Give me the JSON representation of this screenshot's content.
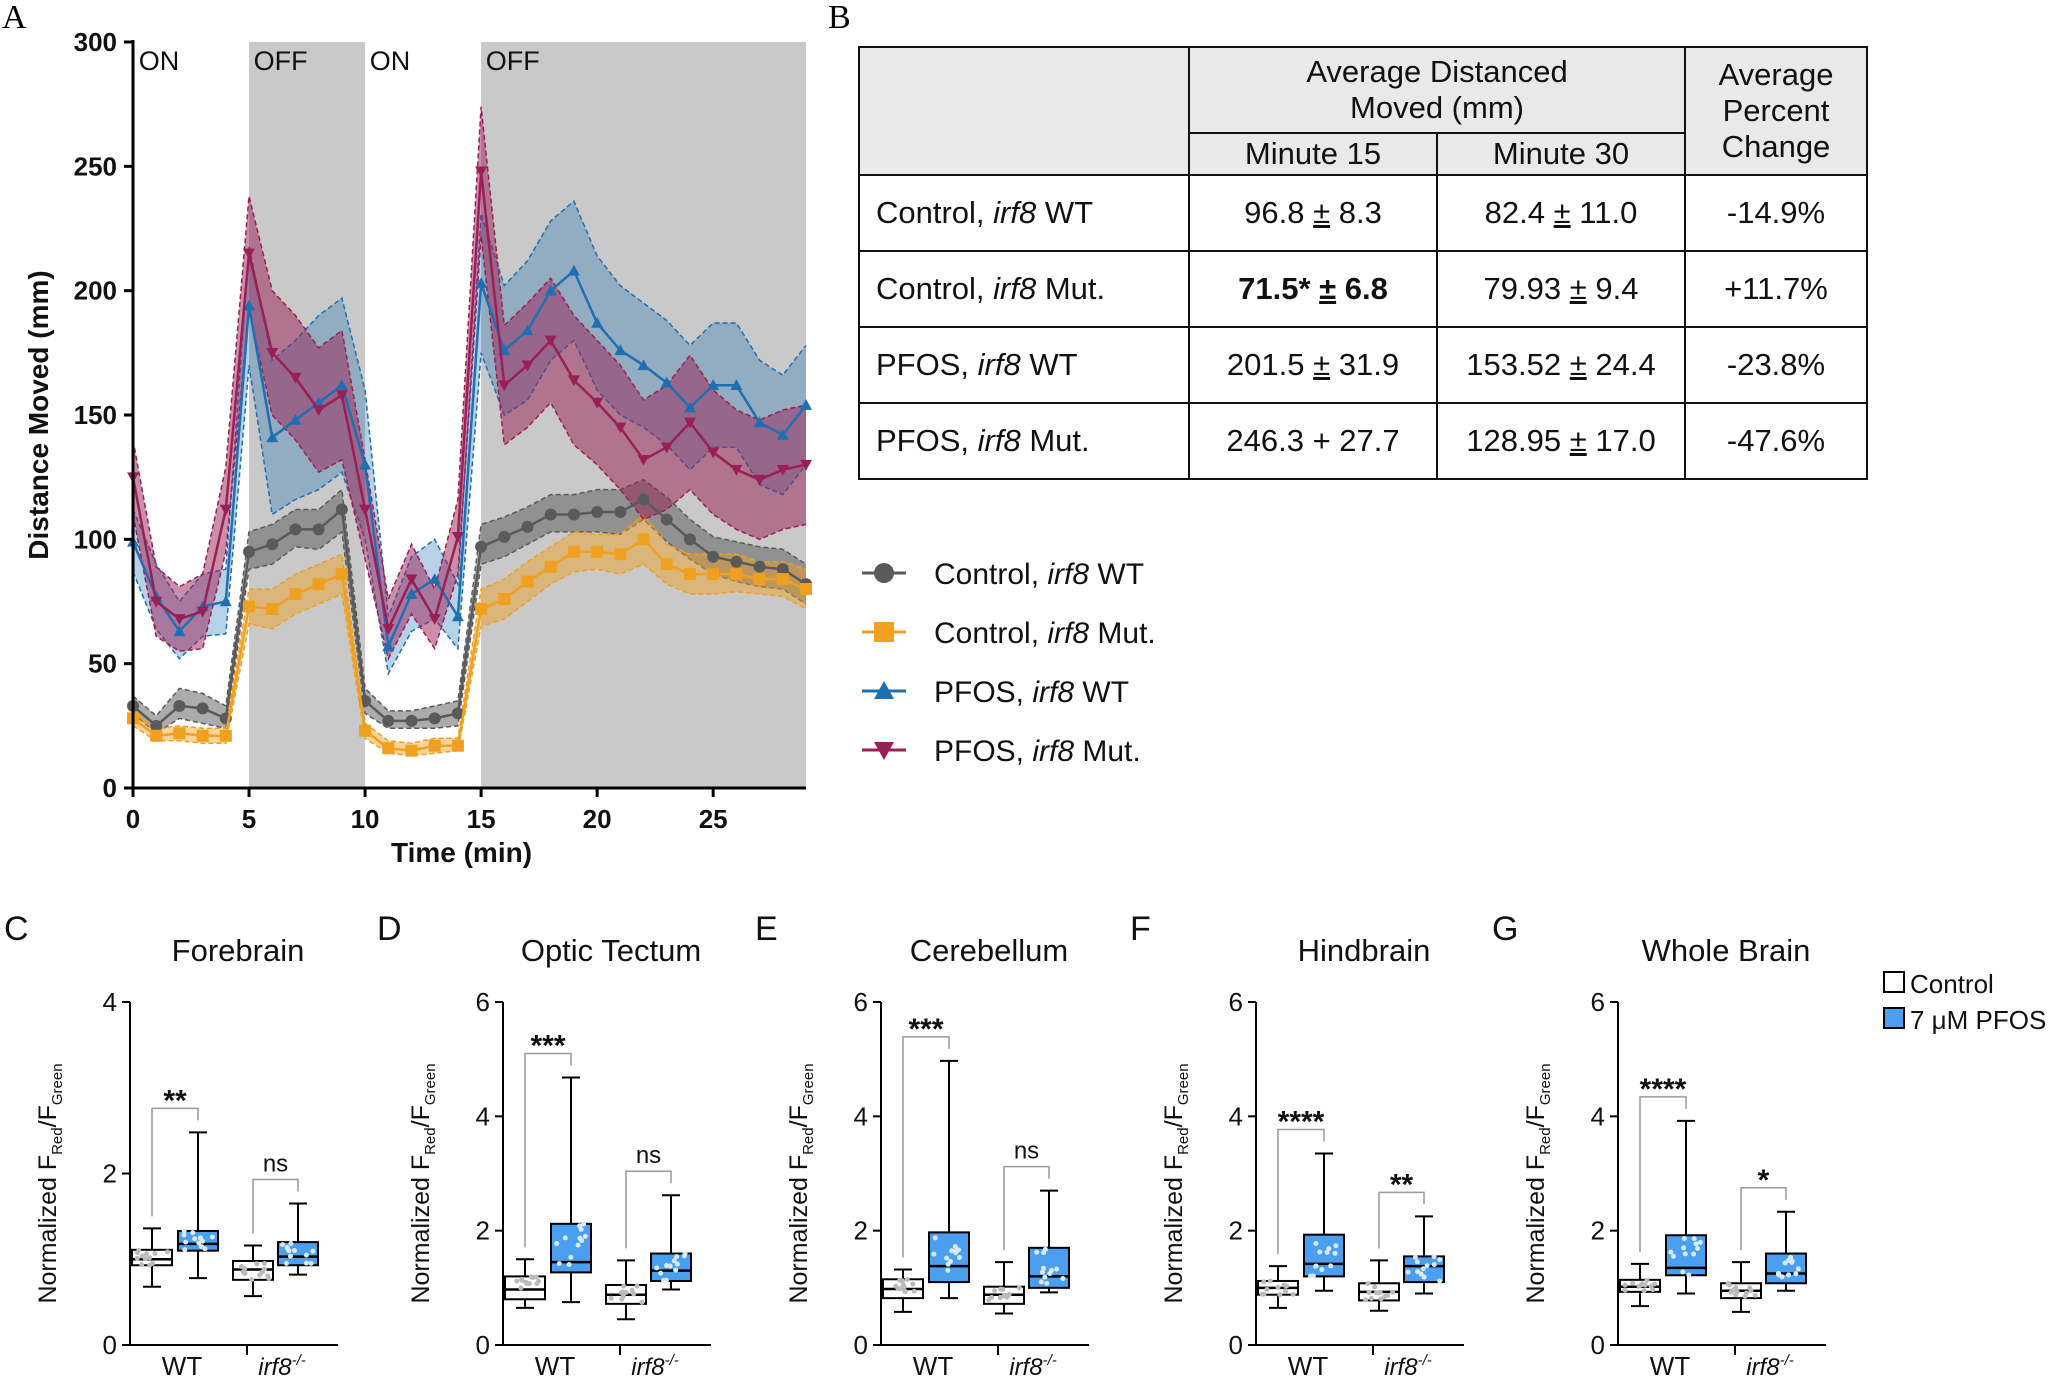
{
  "panel_a": {
    "label": "A",
    "light_labels": [
      "ON",
      "OFF",
      "ON",
      "OFF"
    ],
    "legend": [
      {
        "series": 0,
        "prefix": "Control, ",
        "gene": "irf8",
        "suffix": " WT"
      },
      {
        "series": 1,
        "prefix": "Control, ",
        "gene": "irf8",
        "suffix": " Mut."
      },
      {
        "series": 2,
        "prefix": "PFOS, ",
        "gene": "irf8",
        "suffix": " WT"
      },
      {
        "series": 3,
        "prefix": "PFOS, ",
        "gene": "irf8",
        "suffix": " Mut."
      }
    ]
  },
  "panel_b": {
    "label": "B",
    "header": {
      "avg_dist": "Average Distanced Moved (mm)",
      "avg_dist_line1": "Average Distanced",
      "avg_dist_line2": "Moved (mm)",
      "pct_line1": "Average",
      "pct_line2": "Percent",
      "pct_line3": "Change",
      "minute15": "Minute 15",
      "minute30": "Minute 30"
    },
    "rows": [
      {
        "prefix": "Control, ",
        "gene": "irf8",
        "suffix": " WT",
        "m15": "96.8 ± 8.3",
        "m15_mean": "96.8",
        "m15_pm": "±",
        "m15_err": "8.3",
        "m30": "82.4 ± 11.0",
        "m30_mean": "82.4",
        "m30_pm": "±",
        "m30_err": "11.0",
        "pct": "-14.9%"
      },
      {
        "prefix": "Control, ",
        "gene": "irf8",
        "suffix": " Mut.",
        "m15": "71.5* ± 6.8",
        "m15_mean": "71.5*",
        "m15_pm": "±",
        "m15_err": "6.8",
        "m30": "79.93 ± 9.4",
        "m30_mean": "79.93",
        "m30_pm": "±",
        "m30_err": "9.4",
        "pct": "+11.7%"
      },
      {
        "prefix": "PFOS, ",
        "gene": "irf8",
        "suffix": " WT",
        "m15": "201.5 ± 31.9",
        "m15_mean": "201.5",
        "m15_pm": "±",
        "m15_err": "31.9",
        "m30": "153.52 ± 24.4",
        "m30_mean": "153.52",
        "m30_pm": "±",
        "m30_err": "24.4",
        "pct": "-23.8%"
      },
      {
        "prefix": "PFOS, ",
        "gene": "irf8",
        "suffix": " Mut.",
        "m15": "246.3 + 27.7",
        "m15_mean": "246.3",
        "m15_pm": "+",
        "m15_err": "27.7",
        "m30": "128.95 ± 17.0",
        "m30_mean": "128.95",
        "m30_pm": "±",
        "m30_err": "17.0",
        "pct": "-47.6%"
      }
    ]
  },
  "box_legend": {
    "control": "Control",
    "pfos": "7 μM PFOS"
  },
  "colors": {
    "control_wt": "#5a5a5a",
    "control_mut": "#f0a020",
    "pfos_wt": "#1f6fb2",
    "pfos_mut": "#9a1f55",
    "off_shade": "#c9c9c9",
    "box_control": "#ffffff",
    "box_pfos": "#4a9ff0"
  },
  "chart_data": [
    {
      "type": "line",
      "panel": "A",
      "title": "",
      "xlabel": "Time (min)",
      "ylabel": "Distance Moved (mm)",
      "xlim": [
        0,
        29
      ],
      "ylim": [
        0,
        300
      ],
      "x_ticks": [
        0,
        5,
        10,
        15,
        20,
        25
      ],
      "y_ticks": [
        0,
        50,
        100,
        150,
        200,
        250,
        300
      ],
      "off_periods": [
        [
          5,
          10
        ],
        [
          15,
          29
        ]
      ],
      "x": [
        0,
        1,
        2,
        3,
        4,
        5,
        6,
        7,
        8,
        9,
        10,
        11,
        12,
        13,
        14,
        15,
        16,
        17,
        18,
        19,
        20,
        21,
        22,
        23,
        24,
        25,
        26,
        27,
        28,
        29
      ],
      "series": [
        {
          "name": "Control, irf8 WT",
          "marker": "circle",
          "values": [
            33,
            25,
            33,
            32,
            28,
            95,
            98,
            104,
            104,
            112,
            35,
            27,
            27,
            28,
            30,
            97,
            101,
            105,
            110,
            110,
            111,
            111,
            116,
            108,
            100,
            93,
            91,
            89,
            88,
            82
          ],
          "lower": [
            30,
            22,
            28,
            26,
            24,
            88,
            90,
            97,
            96,
            103,
            30,
            24,
            24,
            24,
            25,
            90,
            93,
            98,
            103,
            103,
            103,
            102,
            108,
            99,
            92,
            86,
            83,
            81,
            80,
            74
          ],
          "upper": [
            37,
            29,
            40,
            38,
            33,
            103,
            106,
            112,
            112,
            120,
            40,
            31,
            31,
            33,
            35,
            106,
            109,
            113,
            118,
            118,
            120,
            120,
            124,
            117,
            108,
            101,
            99,
            97,
            96,
            90
          ]
        },
        {
          "name": "Control, irf8 Mut.",
          "marker": "square",
          "values": [
            28,
            21,
            22,
            21,
            21,
            73,
            72,
            78,
            82,
            86,
            23,
            16,
            15,
            17,
            17,
            72,
            76,
            83,
            89,
            95,
            95,
            94,
            100,
            90,
            86,
            86,
            86,
            84,
            84,
            80
          ],
          "lower": [
            25,
            19,
            19,
            18,
            18,
            66,
            64,
            70,
            74,
            78,
            20,
            14,
            13,
            14,
            15,
            65,
            68,
            75,
            82,
            87,
            88,
            86,
            90,
            82,
            78,
            78,
            79,
            78,
            77,
            72
          ],
          "upper": [
            31,
            24,
            25,
            24,
            24,
            80,
            80,
            86,
            90,
            94,
            26,
            19,
            18,
            20,
            20,
            80,
            84,
            91,
            97,
            103,
            102,
            102,
            110,
            98,
            94,
            94,
            94,
            91,
            91,
            88
          ]
        },
        {
          "name": "PFOS, irf8 WT",
          "marker": "triangle",
          "values": [
            99,
            77,
            63,
            73,
            75,
            194,
            141,
            148,
            155,
            162,
            130,
            57,
            78,
            84,
            69,
            203,
            176,
            184,
            200,
            208,
            187,
            176,
            170,
            163,
            153,
            162,
            162,
            147,
            142,
            154
          ],
          "lower": [
            87,
            64,
            52,
            61,
            62,
            170,
            110,
            116,
            120,
            127,
            100,
            46,
            63,
            68,
            56,
            175,
            150,
            156,
            172,
            180,
            160,
            150,
            145,
            138,
            128,
            137,
            137,
            122,
            118,
            130
          ],
          "upper": [
            112,
            90,
            75,
            86,
            88,
            218,
            172,
            180,
            190,
            197,
            160,
            69,
            93,
            100,
            82,
            231,
            202,
            212,
            228,
            236,
            214,
            202,
            195,
            188,
            178,
            187,
            187,
            172,
            166,
            178
          ]
        },
        {
          "name": "PFOS, irf8 Mut.",
          "marker": "triangle-down",
          "values": [
            125,
            75,
            68,
            71,
            112,
            215,
            175,
            165,
            152,
            158,
            112,
            64,
            84,
            68,
            101,
            248,
            162,
            170,
            180,
            164,
            155,
            145,
            132,
            137,
            147,
            135,
            128,
            124,
            128,
            130
          ],
          "lower": [
            110,
            61,
            55,
            56,
            95,
            192,
            150,
            140,
            127,
            132,
            92,
            52,
            70,
            56,
            86,
            222,
            138,
            145,
            155,
            138,
            130,
            120,
            108,
            112,
            120,
            110,
            104,
            100,
            104,
            106
          ],
          "upper": [
            140,
            89,
            81,
            86,
            129,
            238,
            200,
            190,
            177,
            184,
            132,
            76,
            98,
            80,
            116,
            274,
            186,
            195,
            205,
            190,
            180,
            170,
            156,
            162,
            174,
            160,
            152,
            148,
            152,
            154
          ]
        }
      ]
    },
    {
      "type": "box",
      "panel": "C",
      "panel_label": "C",
      "title": "Forebrain",
      "ylabel": "Normalized F",
      "ylabel_sub1": "Red",
      "ylabel_mid": "/F",
      "ylabel_sub2": "Green",
      "ylim": [
        0,
        4
      ],
      "y_ticks": [
        0,
        2,
        4
      ],
      "categories": [
        "WT",
        "irf8",
        "-/-"
      ],
      "boxes": [
        {
          "group": "Control",
          "min": 0.68,
          "q1": 0.93,
          "median": 1.0,
          "q3": 1.11,
          "max": 1.36
        },
        {
          "group": "7 μM PFOS",
          "min": 0.78,
          "q1": 1.1,
          "median": 1.18,
          "q3": 1.33,
          "max": 2.48
        },
        {
          "group": "Control",
          "min": 0.57,
          "q1": 0.76,
          "median": 0.88,
          "q3": 0.98,
          "max": 1.16
        },
        {
          "group": "7 μM PFOS",
          "min": 0.82,
          "q1": 0.93,
          "median": 1.03,
          "q3": 1.2,
          "max": 1.65
        }
      ],
      "significance": [
        "**",
        "ns"
      ]
    },
    {
      "type": "box",
      "panel": "D",
      "panel_label": "D",
      "title": "Optic Tectum",
      "ylabel": "Normalized F",
      "ylabel_sub1": "Red",
      "ylabel_mid": "/F",
      "ylabel_sub2": "Green",
      "ylim": [
        0,
        6
      ],
      "y_ticks": [
        0,
        2,
        4,
        6
      ],
      "categories": [
        "WT",
        "irf8",
        "-/-"
      ],
      "boxes": [
        {
          "group": "Control",
          "min": 0.65,
          "q1": 0.8,
          "median": 0.97,
          "q3": 1.2,
          "max": 1.5
        },
        {
          "group": "7 μM PFOS",
          "min": 0.75,
          "q1": 1.27,
          "median": 1.45,
          "q3": 2.12,
          "max": 4.68
        },
        {
          "group": "Control",
          "min": 0.45,
          "q1": 0.72,
          "median": 0.88,
          "q3": 1.05,
          "max": 1.48
        },
        {
          "group": "7 μM PFOS",
          "min": 0.97,
          "q1": 1.12,
          "median": 1.3,
          "q3": 1.6,
          "max": 2.62
        }
      ],
      "significance": [
        "***",
        "ns"
      ]
    },
    {
      "type": "box",
      "panel": "E",
      "panel_label": "E",
      "title": "Cerebellum",
      "ylabel": "Normalized F",
      "ylabel_sub1": "Red",
      "ylabel_mid": "/F",
      "ylabel_sub2": "Green",
      "ylim": [
        0,
        6
      ],
      "y_ticks": [
        0,
        2,
        4,
        6
      ],
      "categories": [
        "WT",
        "irf8",
        "-/-"
      ],
      "boxes": [
        {
          "group": "Control",
          "min": 0.58,
          "q1": 0.82,
          "median": 0.98,
          "q3": 1.15,
          "max": 1.32
        },
        {
          "group": "7 μM PFOS",
          "min": 0.82,
          "q1": 1.1,
          "median": 1.38,
          "q3": 1.97,
          "max": 4.97
        },
        {
          "group": "Control",
          "min": 0.55,
          "q1": 0.72,
          "median": 0.88,
          "q3": 1.02,
          "max": 1.45
        },
        {
          "group": "7 μM PFOS",
          "min": 0.92,
          "q1": 1.0,
          "median": 1.2,
          "q3": 1.7,
          "max": 2.7
        }
      ],
      "significance": [
        "***",
        "ns"
      ]
    },
    {
      "type": "box",
      "panel": "F",
      "panel_label": "F",
      "title": "Hindbrain",
      "ylabel": "Normalized F",
      "ylabel_sub1": "Red",
      "ylabel_mid": "/F",
      "ylabel_sub2": "Green",
      "ylim": [
        0,
        6
      ],
      "y_ticks": [
        0,
        2,
        4,
        6
      ],
      "categories": [
        "WT",
        "irf8",
        "-/-"
      ],
      "boxes": [
        {
          "group": "Control",
          "min": 0.65,
          "q1": 0.88,
          "median": 1.0,
          "q3": 1.12,
          "max": 1.38
        },
        {
          "group": "7 μM PFOS",
          "min": 0.95,
          "q1": 1.2,
          "median": 1.42,
          "q3": 1.93,
          "max": 3.35
        },
        {
          "group": "Control",
          "min": 0.6,
          "q1": 0.78,
          "median": 0.93,
          "q3": 1.08,
          "max": 1.48
        },
        {
          "group": "7 μM PFOS",
          "min": 0.9,
          "q1": 1.1,
          "median": 1.38,
          "q3": 1.55,
          "max": 2.25
        }
      ],
      "significance": [
        "****",
        "**"
      ]
    },
    {
      "type": "box",
      "panel": "G",
      "panel_label": "G",
      "title": "Whole Brain",
      "ylabel": "Normalized F",
      "ylabel_sub1": "Red",
      "ylabel_mid": "/F",
      "ylabel_sub2": "Green",
      "ylim": [
        0,
        6
      ],
      "y_ticks": [
        0,
        2,
        4,
        6
      ],
      "categories": [
        "WT",
        "irf8",
        "-/-"
      ],
      "boxes": [
        {
          "group": "Control",
          "min": 0.68,
          "q1": 0.93,
          "median": 1.02,
          "q3": 1.14,
          "max": 1.42
        },
        {
          "group": "7 μM PFOS",
          "min": 0.9,
          "q1": 1.22,
          "median": 1.35,
          "q3": 1.92,
          "max": 3.92
        },
        {
          "group": "Control",
          "min": 0.58,
          "q1": 0.82,
          "median": 0.95,
          "q3": 1.08,
          "max": 1.45
        },
        {
          "group": "7 μM PFOS",
          "min": 0.95,
          "q1": 1.08,
          "median": 1.25,
          "q3": 1.6,
          "max": 2.33
        }
      ],
      "significance": [
        "****",
        "*"
      ]
    }
  ]
}
